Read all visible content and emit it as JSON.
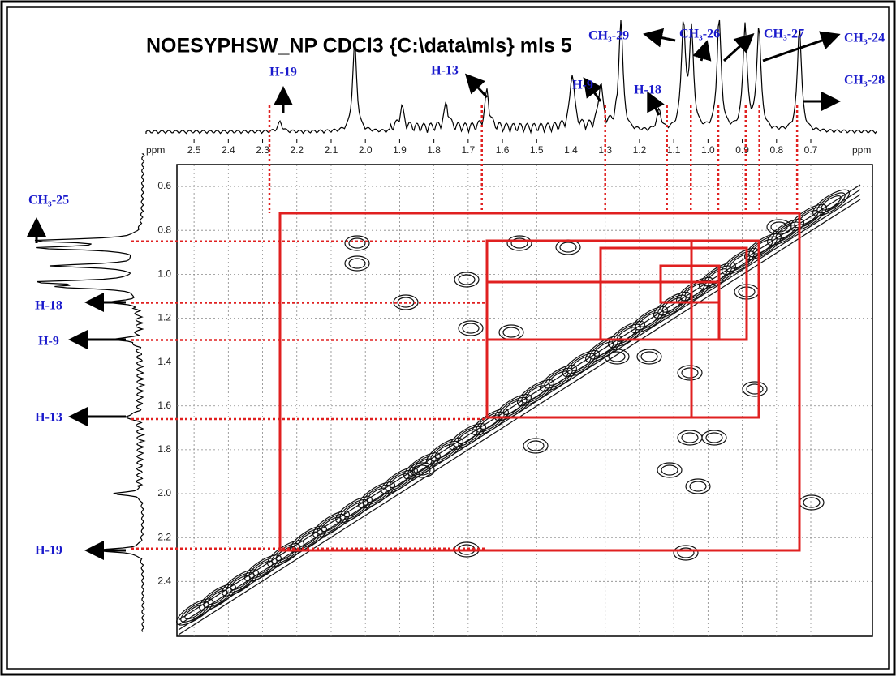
{
  "chart_data": {
    "type": "contour",
    "title": "NOESYPHSW_NP CDCl3 {C:\\data\\mls} mls 5",
    "xlabel": "ppm",
    "ylabel": "ppm",
    "xlim": [
      2.55,
      0.52
    ],
    "ylim": [
      0.5,
      2.65
    ],
    "xticks": [
      2.5,
      2.4,
      2.3,
      2.2,
      2.1,
      {
        "value": 2,
        "label": "2.0"
      },
      1.9,
      1.8,
      1.7,
      1.6,
      1.5,
      1.4,
      1.3,
      1.2,
      1.1,
      {
        "value": 1,
        "label": "1.0"
      },
      0.9,
      0.8,
      0.7
    ],
    "yticks": [
      0.6,
      0.8,
      {
        "value": 1,
        "label": "1.0"
      },
      1.2,
      1.4,
      1.6,
      1.8,
      {
        "value": 2,
        "label": "2.0"
      },
      2.2,
      2.4
    ],
    "grid": true,
    "top_peaks": [
      {
        "label": "H-19",
        "ppm": 2.28
      },
      {
        "label": "H-13",
        "ppm": 1.66
      },
      {
        "label": "H-9",
        "ppm": 1.3
      },
      {
        "label": "H-18",
        "ppm": 1.12
      },
      {
        "label": "CH₃-29",
        "ppm": 1.05
      },
      {
        "label": "CH₃-26",
        "ppm": 0.97
      },
      {
        "label": "CH₃-27",
        "ppm": 0.89
      },
      {
        "label": "CH₃-24",
        "ppm": 0.85
      },
      {
        "label": "CH₃-28",
        "ppm": 0.74
      }
    ],
    "left_peaks": [
      {
        "label": "CH₃-25",
        "ppm": 0.85
      },
      {
        "label": "H-18",
        "ppm": 1.13
      },
      {
        "label": "H-9",
        "ppm": 1.3
      },
      {
        "label": "H-13",
        "ppm": 1.66
      },
      {
        "label": "H-19",
        "ppm": 2.25
      }
    ]
  }
}
